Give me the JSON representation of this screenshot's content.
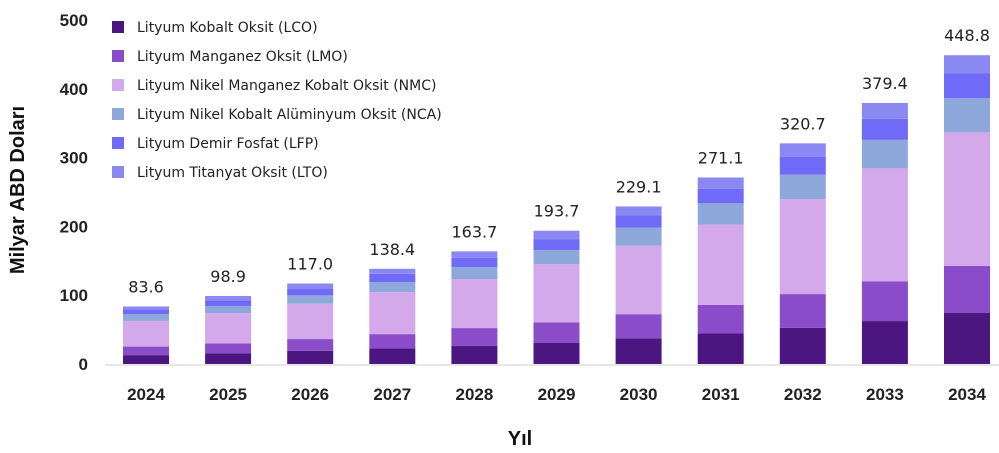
{
  "chart_data": {
    "type": "bar",
    "stacked": true,
    "title": "",
    "xlabel": "Yıl",
    "ylabel": "Milyar ABD Doları",
    "ylim": [
      0,
      500
    ],
    "yticks": [
      0,
      100,
      200,
      300,
      400,
      500
    ],
    "grid": false,
    "legend_position": "top-left",
    "categories": [
      "2024",
      "2025",
      "2026",
      "2027",
      "2028",
      "2029",
      "2030",
      "2031",
      "2032",
      "2033",
      "2034"
    ],
    "totals": [
      "83.6",
      "98.9",
      "117.0",
      "138.4",
      "163.7",
      "193.7",
      "229.1",
      "271.1",
      "320.7",
      "379.4",
      "448.8"
    ],
    "series": [
      {
        "name": "Lityum Kobalt Oksit (LCO)",
        "color": "#4b1680",
        "values": [
          12.9,
          15.7,
          19.1,
          22.7,
          26.1,
          31.0,
          37.2,
          44.4,
          52.5,
          62.4,
          74.6
        ]
      },
      {
        "name": "Lityum Manganez Oksit (LMO)",
        "color": "#8a4cc9",
        "values": [
          12.4,
          14.3,
          17.1,
          20.7,
          26.1,
          29.5,
          35.2,
          41.4,
          49.1,
          57.5,
          68.0
        ]
      },
      {
        "name": "Lityum Nikel Manganez Kobalt Oksit (NMC)",
        "color": "#d4a9eb",
        "values": [
          37.3,
          43.8,
          51.4,
          61.1,
          71.3,
          84.5,
          99.4,
          117.0,
          138.0,
          164.4,
          194.0
        ]
      },
      {
        "name": "Lityum Nikel Kobalt Alüminyum Oksit (NCA)",
        "color": "#8fa8dc",
        "values": [
          10.0,
          10.3,
          12.2,
          14.3,
          17.2,
          20.5,
          26.4,
          30.7,
          35.5,
          41.5,
          49.7
        ]
      },
      {
        "name": "Lityum Demir Fosfat (LFP)",
        "color": "#6f6bf6",
        "values": [
          6.5,
          8.4,
          9.8,
          12.3,
          13.8,
          16.0,
          17.6,
          21.0,
          25.8,
          30.7,
          36.5
        ]
      },
      {
        "name": "Lityum Titanyat Oksit (LTO)",
        "color": "#8c88f2",
        "values": [
          4.5,
          6.4,
          7.4,
          7.3,
          9.2,
          12.2,
          13.2,
          16.6,
          19.8,
          22.9,
          26.0
        ]
      }
    ]
  }
}
